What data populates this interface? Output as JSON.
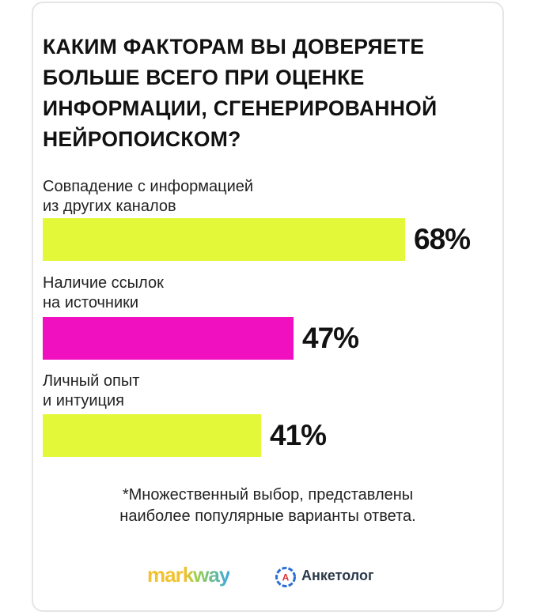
{
  "chart_data": {
    "type": "bar",
    "orientation": "horizontal",
    "title": "Каким факторам вы доверяете больше всего при оценке информации, сгенерированной нейропоиском?",
    "categories": [
      "Совпадение с информацией\nиз других каналов",
      "Наличие ссылок\nна источники",
      "Личный опыт\nи интуиция"
    ],
    "values": [
      68,
      47,
      41
    ],
    "value_labels": [
      "68%",
      "47%",
      "41%"
    ],
    "colors": [
      "#e2f838",
      "#f010c0",
      "#e2f838"
    ],
    "xlim": [
      0,
      100
    ],
    "grid": false
  },
  "footnote": "*Множественный выбор, представлены\nнаиболее популярные варианты ответа.",
  "logos": {
    "markway": "markway",
    "anketolog": "Анкетолог",
    "anketolog_icon_letter": "А",
    "anketolog_icon": "anketolog-logo-icon"
  }
}
